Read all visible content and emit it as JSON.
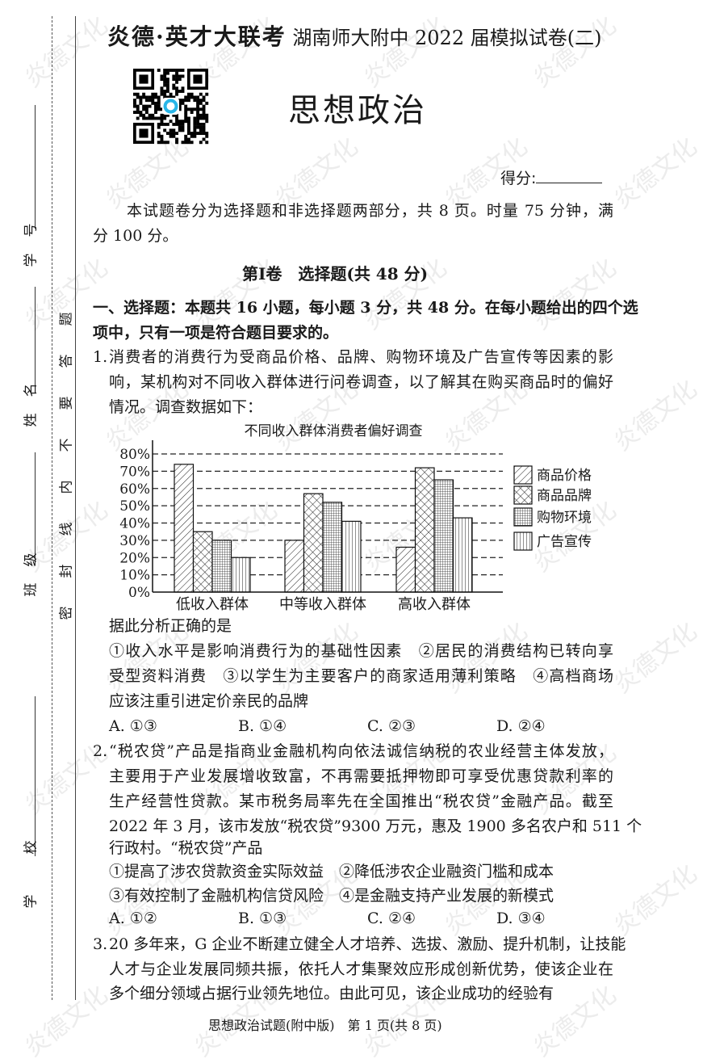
{
  "watermark": "炎德文化",
  "margin": {
    "fields": [
      "学号",
      "姓名",
      "班级",
      "学校"
    ],
    "seal_notice": "密封线内不要答题"
  },
  "header": {
    "brand": "炎德·英才大联考",
    "exam": "湖南师大附中 2022 届模拟试卷(二)"
  },
  "qr_code": {
    "center_icon": "app-logo-icon",
    "accent": "#29b6e8"
  },
  "title": "思想政治",
  "score_label": "得分:",
  "intro": [
    "本试题卷分为选择题和非选择题两部分，共 8 页。时量 75 分钟，满",
    "分 100 分。"
  ],
  "section_heading": "第Ⅰ卷　选择题(共 48 分)",
  "instructions": [
    "一、选择题：本题共 16 小题，每小题 3 分，共 48 分。在每小题给出的四个选",
    "项中，只有一项是符合题目要求的。"
  ],
  "questions": [
    {
      "number": "1.",
      "stem": [
        "消费者的消费行为受商品价格、品牌、购物环境及广告宣传等因素的影",
        "响，某机构对不同收入群体进行问卷调查，以了解其在购买商品时的偏好",
        "情况。调查数据如下："
      ],
      "after_chart": "据此分析正确的是",
      "statements": [
        "①收入水平是影响消费行为的基础性因素　②居民的消费结构已转向享",
        "受型资料消费　③以学生为主要客户的商家适用薄利策略　④高档商场",
        "应该注重引进定价亲民的品牌"
      ],
      "choices": [
        "A. ①③",
        "B. ①④",
        "C. ②③",
        "D. ②④"
      ]
    },
    {
      "number": "2.",
      "stem": [
        "“税农贷”产品是指商业金融机构向依法诚信纳税的农业经营主体发放，",
        "主要用于产业发展增收致富，不再需要抵押物即可享受优惠贷款利率的",
        "生产经营性贷款。某市税务局率先在全国推出“税农贷”金融产品。截至",
        "2022 年 3 月，该市发放“税农贷”9300 万元，惠及 1900 多名农户和 511 个",
        "行政村。“税农贷”产品"
      ],
      "statements": [
        "①提高了涉农贷款资金实际效益　②降低涉农企业融资门槛和成本",
        "③有效控制了金融机构信贷风险　④是金融支持产业发展的新模式"
      ],
      "choices": [
        "A. ①②",
        "B. ①③",
        "C. ②④",
        "D. ③④"
      ]
    },
    {
      "number": "3.",
      "stem": [
        "20 多年来，G 企业不断建立健全人才培养、选拔、激励、提升机制，让技能",
        "人才与企业发展同频共振，依托人才集聚效应形成创新优势，使该企业在",
        "多个细分领域占据行业领先地位。由此可见，该企业成功的经验有"
      ]
    }
  ],
  "chart_data": {
    "type": "bar",
    "title": "不同收入群体消费者偏好调查",
    "categories": [
      "低收入群体",
      "中等收入群体",
      "高收入群体"
    ],
    "series": [
      {
        "name": "商品价格",
        "pattern": "diagonal-hatch",
        "values": [
          74,
          30,
          26
        ]
      },
      {
        "name": "商品品牌",
        "pattern": "cross-hatch",
        "values": [
          35,
          57,
          72
        ]
      },
      {
        "name": "购物环境",
        "pattern": "grid",
        "values": [
          30,
          52,
          65
        ]
      },
      {
        "name": "广告宣传",
        "pattern": "vertical-lines",
        "values": [
          20,
          41,
          43
        ]
      }
    ],
    "yticks": [
      "0%",
      "10%",
      "20%",
      "30%",
      "40%",
      "50%",
      "60%",
      "70%",
      "80%"
    ],
    "ylim": [
      0,
      80
    ],
    "unit": "%",
    "grid": "dashed horizontal",
    "legend": "right"
  },
  "footer": "思想政治试题(附中版)　第 1 页(共 8 页)"
}
